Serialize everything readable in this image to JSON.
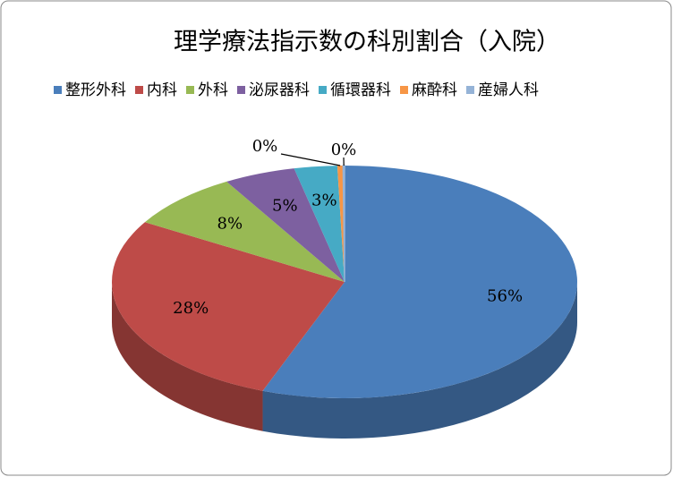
{
  "chart_data": {
    "type": "pie",
    "title": "理学療法指示数の科別割合（入院）",
    "categories": [
      "整形外科",
      "内科",
      "外科",
      "泌尿器科",
      "循環器科",
      "麻酔科",
      "産婦人科"
    ],
    "values": [
      56,
      28,
      8,
      5,
      3,
      0.4,
      0.1
    ],
    "value_labels": [
      "56%",
      "28%",
      "8%",
      "5%",
      "3%",
      "0%",
      "0%"
    ],
    "colors": [
      "#4A7EBB",
      "#BE4B48",
      "#98B954",
      "#7D60A0",
      "#46AAC5",
      "#F79646",
      "#95B3D7"
    ],
    "legend": "top"
  }
}
